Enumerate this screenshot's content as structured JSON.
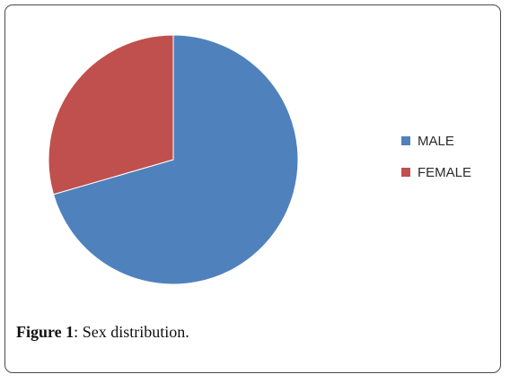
{
  "chart_data": {
    "type": "pie",
    "categories": [
      "MALE",
      "FEMALE"
    ],
    "values": [
      70.5,
      29.5
    ],
    "colors": [
      "#4f81bd",
      "#c0504d"
    ],
    "start_angle": "12 o'clock",
    "direction": "clockwise",
    "legend_position": "right"
  },
  "caption": {
    "label": "Figure 1",
    "separator": ":",
    "text": " Sex distribution."
  }
}
